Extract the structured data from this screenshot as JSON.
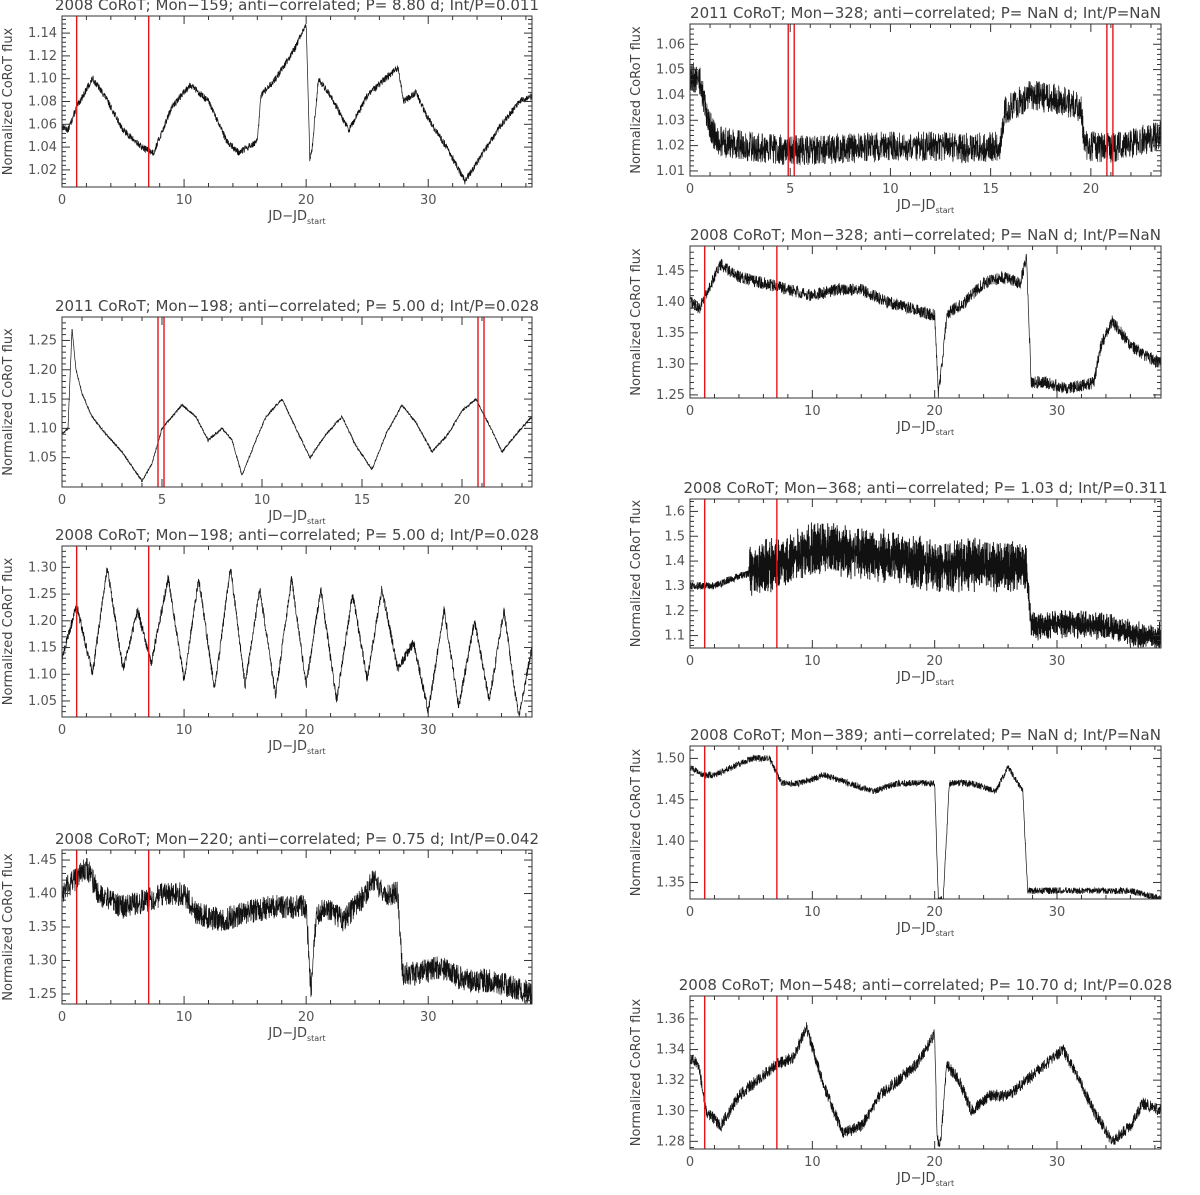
{
  "figure": {
    "xlabel": "JD−JD",
    "xlabel_sub": "start",
    "ylabel": "Normalized CoRoT flux",
    "colors": {
      "data": "#111111",
      "marker": "#e8141a",
      "axis": "#333333",
      "title_light": "#888888",
      "title_dark": "#444444"
    }
  },
  "chart_data": [
    {
      "type": "line",
      "title": "2008 CoRoT; Mon−159; anti−correlated; P= 8.80 d; Int/P=0.011",
      "title_style": "light",
      "xlim": [
        0,
        38.5
      ],
      "ylim": [
        1.005,
        1.155
      ],
      "xticks": [
        0,
        10,
        20,
        30
      ],
      "yticks": [
        1.02,
        1.04,
        1.06,
        1.08,
        1.1,
        1.12,
        1.14
      ],
      "ytick_decimals": 2,
      "markers": [
        1.2,
        7.1
      ],
      "noise": 0.003,
      "x": [
        0,
        0.5,
        1.2,
        2.5,
        3.5,
        5,
        6.5,
        7.5,
        9,
        10.5,
        12,
        13.5,
        14.5,
        16,
        16.3,
        17.5,
        19,
        20,
        20.3,
        20.5,
        21,
        22,
        23.5,
        25,
        26.5,
        27.5,
        28,
        29,
        30,
        31.5,
        33,
        34.5,
        36,
        37.5,
        38.5
      ],
      "y": [
        1.058,
        1.055,
        1.075,
        1.1,
        1.085,
        1.055,
        1.04,
        1.035,
        1.075,
        1.095,
        1.08,
        1.045,
        1.035,
        1.045,
        1.085,
        1.1,
        1.125,
        1.148,
        1.03,
        1.04,
        1.1,
        1.085,
        1.055,
        1.085,
        1.1,
        1.11,
        1.08,
        1.088,
        1.065,
        1.04,
        1.01,
        1.035,
        1.06,
        1.08,
        1.085
      ]
    },
    {
      "type": "line",
      "title": "2011 CoRoT; Mon−198; anti−correlated; P= 5.00 d; Int/P=0.028",
      "title_style": "light",
      "xlim": [
        0,
        23.5
      ],
      "ylim": [
        1.0,
        1.29
      ],
      "xticks": [
        0,
        5,
        10,
        15,
        20
      ],
      "yticks": [
        1.05,
        1.1,
        1.15,
        1.2,
        1.25
      ],
      "ytick_decimals": 2,
      "markers": [
        4.8,
        5.1,
        20.8,
        21.1
      ],
      "noise": 0.002,
      "x": [
        0,
        0.3,
        0.5,
        0.7,
        1.0,
        1.5,
        2.2,
        3.0,
        4.0,
        4.5,
        5.0,
        5.5,
        6.0,
        6.7,
        7.3,
        8.0,
        8.5,
        9.0,
        9.7,
        10.2,
        11.0,
        11.7,
        12.4,
        13.2,
        14.0,
        14.7,
        15.5,
        16.2,
        17.0,
        17.7,
        18.5,
        19.3,
        20.0,
        20.7,
        21.3,
        22.0,
        22.7,
        23.5
      ],
      "y": [
        1.09,
        1.1,
        1.27,
        1.2,
        1.16,
        1.12,
        1.09,
        1.06,
        1.01,
        1.04,
        1.1,
        1.12,
        1.14,
        1.12,
        1.08,
        1.1,
        1.08,
        1.02,
        1.08,
        1.12,
        1.15,
        1.1,
        1.05,
        1.09,
        1.12,
        1.07,
        1.03,
        1.09,
        1.14,
        1.11,
        1.06,
        1.09,
        1.13,
        1.15,
        1.11,
        1.06,
        1.09,
        1.12
      ]
    },
    {
      "type": "line",
      "title": "2008 CoRoT; Mon−198; anti−correlated; P= 5.00 d; Int/P=0.028",
      "title_style": "dark",
      "xlim": [
        0,
        38.5
      ],
      "ylim": [
        1.02,
        1.34
      ],
      "xticks": [
        0,
        10,
        20,
        30
      ],
      "yticks": [
        1.05,
        1.1,
        1.15,
        1.2,
        1.25,
        1.3
      ],
      "ytick_decimals": 2,
      "markers": [
        1.2,
        7.1
      ],
      "noise": 0.009,
      "x": [
        0,
        1.2,
        2.5,
        3.7,
        5.0,
        6.2,
        7.3,
        8.7,
        10.0,
        11.2,
        12.5,
        13.8,
        15.0,
        16.2,
        17.5,
        18.8,
        20.0,
        21.2,
        22.5,
        23.8,
        25.0,
        26.2,
        27.5,
        28.8,
        30.0,
        31.3,
        32.5,
        33.8,
        35.0,
        36.2,
        37.4,
        38.5
      ],
      "y": [
        1.13,
        1.23,
        1.1,
        1.3,
        1.11,
        1.22,
        1.12,
        1.28,
        1.09,
        1.28,
        1.07,
        1.3,
        1.08,
        1.26,
        1.06,
        1.28,
        1.08,
        1.26,
        1.05,
        1.25,
        1.09,
        1.26,
        1.11,
        1.16,
        1.03,
        1.22,
        1.04,
        1.2,
        1.05,
        1.22,
        1.02,
        1.15
      ]
    },
    {
      "type": "line",
      "title": "2008 CoRoT; Mon−220; anti−correlated; P= 0.75 d; Int/P=0.042",
      "title_style": "dark",
      "xlim": [
        0,
        38.5
      ],
      "ylim": [
        1.235,
        1.465
      ],
      "xticks": [
        0,
        10,
        20,
        30
      ],
      "yticks": [
        1.25,
        1.3,
        1.35,
        1.4,
        1.45
      ],
      "ytick_decimals": 2,
      "markers": [
        1.2,
        7.1
      ],
      "noise": 0.018,
      "x": [
        0,
        1.0,
        2.0,
        3.0,
        5.0,
        7.0,
        8.5,
        10.0,
        11.0,
        13.0,
        15.0,
        17.0,
        19.0,
        20.0,
        20.4,
        20.8,
        21.5,
        23.0,
        24.5,
        25.5,
        26.5,
        27.5,
        27.9,
        29.0,
        31.0,
        33.0,
        35.0,
        37.0,
        38.5
      ],
      "y": [
        1.4,
        1.42,
        1.44,
        1.4,
        1.38,
        1.39,
        1.4,
        1.4,
        1.37,
        1.36,
        1.37,
        1.38,
        1.38,
        1.38,
        1.25,
        1.36,
        1.38,
        1.36,
        1.39,
        1.42,
        1.4,
        1.4,
        1.28,
        1.28,
        1.29,
        1.27,
        1.27,
        1.26,
        1.25
      ]
    },
    {
      "type": "line",
      "title": "2011 CoRoT; Mon−328; anti−correlated; P= NaN d; Int/P=NaN",
      "title_style": "dark",
      "xlim": [
        0,
        23.5
      ],
      "ylim": [
        1.008,
        1.068
      ],
      "xticks": [
        0,
        5,
        10,
        15,
        20
      ],
      "yticks": [
        1.01,
        1.02,
        1.03,
        1.04,
        1.05,
        1.06
      ],
      "ytick_decimals": 2,
      "markers": [
        4.9,
        5.2,
        20.8,
        21.1
      ],
      "noise": 0.006,
      "x": [
        0,
        0.5,
        0.9,
        1.3,
        2.5,
        5.0,
        8.0,
        11.0,
        14.0,
        15.5,
        15.7,
        17.0,
        18.5,
        19.5,
        19.7,
        21.0,
        22.5,
        23.5
      ],
      "y": [
        1.048,
        1.045,
        1.03,
        1.022,
        1.02,
        1.018,
        1.019,
        1.02,
        1.019,
        1.02,
        1.034,
        1.04,
        1.038,
        1.035,
        1.02,
        1.019,
        1.022,
        1.024
      ]
    },
    {
      "type": "line",
      "title": "2008 CoRoT; Mon−328; anti−correlated; P= NaN d; Int/P=NaN",
      "title_style": "dark",
      "xlim": [
        0,
        38.5
      ],
      "ylim": [
        1.245,
        1.49
      ],
      "xticks": [
        0,
        10,
        20,
        30
      ],
      "yticks": [
        1.25,
        1.3,
        1.35,
        1.4,
        1.45
      ],
      "ytick_decimals": 2,
      "markers": [
        1.2,
        7.1
      ],
      "noise": 0.01,
      "x": [
        0,
        0.8,
        1.5,
        2.5,
        4.0,
        6.0,
        8.0,
        10.0,
        12.0,
        14.0,
        16.0,
        18.0,
        19.5,
        20.0,
        20.3,
        20.6,
        21.0,
        22.5,
        24.0,
        25.5,
        27.0,
        27.5,
        27.9,
        29.0,
        31.0,
        33.0,
        33.6,
        34.5,
        36.0,
        37.5,
        38.5
      ],
      "y": [
        1.4,
        1.39,
        1.42,
        1.46,
        1.44,
        1.43,
        1.42,
        1.41,
        1.42,
        1.42,
        1.4,
        1.39,
        1.38,
        1.38,
        1.25,
        1.3,
        1.38,
        1.4,
        1.43,
        1.44,
        1.43,
        1.47,
        1.27,
        1.27,
        1.26,
        1.27,
        1.33,
        1.37,
        1.33,
        1.31,
        1.3
      ]
    },
    {
      "type": "line",
      "title": "2008 CoRoT; Mon−368; anti−correlated; P= 1.03 d; Int/P=0.311",
      "title_style": "dark",
      "xlim": [
        0,
        38.5
      ],
      "ylim": [
        1.05,
        1.65
      ],
      "xticks": [
        0,
        10,
        20,
        30
      ],
      "yticks": [
        1.1,
        1.2,
        1.3,
        1.4,
        1.5,
        1.6
      ],
      "ytick_decimals": 1,
      "markers": [
        1.2,
        7.1
      ],
      "noise": 0.015,
      "band": {
        "x_from": 4.8,
        "x_to": 27.5,
        "amp": 0.1,
        "after_amp": 0.05
      },
      "x": [
        0,
        1.0,
        2.0,
        3.5,
        4.8,
        6.0,
        8.0,
        10.0,
        12.0,
        14.0,
        16.0,
        18.0,
        20.0,
        20.5,
        21.0,
        23.0,
        25.0,
        27.5,
        27.9,
        29.0,
        31.0,
        33.0,
        35.0,
        37.0,
        38.5
      ],
      "y": [
        1.3,
        1.3,
        1.3,
        1.33,
        1.35,
        1.38,
        1.4,
        1.45,
        1.45,
        1.43,
        1.42,
        1.4,
        1.38,
        1.37,
        1.38,
        1.39,
        1.38,
        1.37,
        1.14,
        1.14,
        1.15,
        1.14,
        1.12,
        1.1,
        1.1
      ]
    },
    {
      "type": "line",
      "title": "2008 CoRoT; Mon−389; anti−correlated; P= NaN d; Int/P=NaN",
      "title_style": "dark",
      "xlim": [
        0,
        38.5
      ],
      "ylim": [
        1.33,
        1.515
      ],
      "xticks": [
        0,
        10,
        20,
        30
      ],
      "yticks": [
        1.35,
        1.4,
        1.45,
        1.5
      ],
      "ytick_decimals": 2,
      "markers": [
        1.2,
        7.1
      ],
      "noise": 0.004,
      "x": [
        0,
        1.0,
        2.0,
        3.5,
        5.0,
        6.5,
        7.5,
        9.0,
        11.0,
        13.0,
        15.0,
        17.0,
        19.0,
        20.0,
        20.3,
        20.7,
        21.2,
        23.0,
        25.0,
        26.0,
        27.2,
        27.6,
        28.5,
        31.0,
        34.0,
        36.0,
        38.5
      ],
      "y": [
        1.49,
        1.48,
        1.48,
        1.49,
        1.5,
        1.5,
        1.47,
        1.47,
        1.48,
        1.47,
        1.46,
        1.47,
        1.47,
        1.47,
        1.33,
        1.33,
        1.47,
        1.47,
        1.46,
        1.49,
        1.46,
        1.34,
        1.34,
        1.34,
        1.34,
        1.34,
        1.33
      ]
    },
    {
      "type": "line",
      "title": "2008 CoRoT; Mon−548; anti−correlated; P= 10.70 d; Int/P=0.028",
      "title_style": "dark",
      "xlim": [
        0,
        38.5
      ],
      "ylim": [
        1.275,
        1.375
      ],
      "xticks": [
        0,
        10,
        20,
        30
      ],
      "yticks": [
        1.28,
        1.3,
        1.32,
        1.34,
        1.36
      ],
      "ytick_decimals": 2,
      "markers": [
        1.2,
        7.1
      ],
      "noise": 0.004,
      "x": [
        0,
        0.7,
        1.3,
        2.5,
        4.0,
        5.5,
        7.0,
        8.5,
        9.5,
        11.0,
        12.5,
        14.0,
        15.5,
        17.0,
        18.5,
        20.0,
        20.2,
        20.5,
        21.0,
        22.0,
        23.0,
        24.5,
        26.0,
        27.5,
        29.0,
        30.5,
        31.5,
        33.0,
        34.5,
        36.0,
        37.0,
        38.5
      ],
      "y": [
        1.335,
        1.33,
        1.3,
        1.29,
        1.31,
        1.32,
        1.33,
        1.335,
        1.355,
        1.315,
        1.285,
        1.29,
        1.31,
        1.32,
        1.33,
        1.35,
        1.28,
        1.28,
        1.33,
        1.32,
        1.3,
        1.31,
        1.31,
        1.32,
        1.33,
        1.34,
        1.325,
        1.3,
        1.28,
        1.29,
        1.305,
        1.3
      ]
    }
  ]
}
